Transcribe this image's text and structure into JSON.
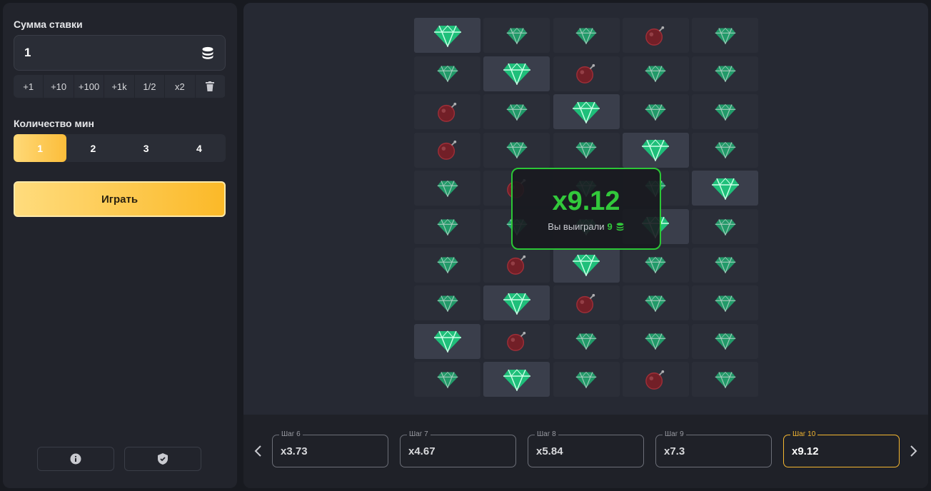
{
  "bet": {
    "label": "Сумма ставки",
    "value": "1",
    "quick": [
      "+1",
      "+10",
      "+100",
      "+1k",
      "1/2",
      "x2"
    ]
  },
  "mines": {
    "label": "Количество мин",
    "options": [
      "1",
      "2",
      "3",
      "4"
    ]
  },
  "play": "Играть",
  "result": {
    "multiplier": "x9.12",
    "text": "Вы выиграли",
    "amount": "9"
  },
  "steps": [
    {
      "label": "Шаг 6",
      "value": "x3.73"
    },
    {
      "label": "Шаг 7",
      "value": "x4.67"
    },
    {
      "label": "Шаг 8",
      "value": "x5.84"
    },
    {
      "label": "Шаг 9",
      "value": "x7.3"
    },
    {
      "label": "Шаг 10",
      "value": "x9.12"
    }
  ]
}
